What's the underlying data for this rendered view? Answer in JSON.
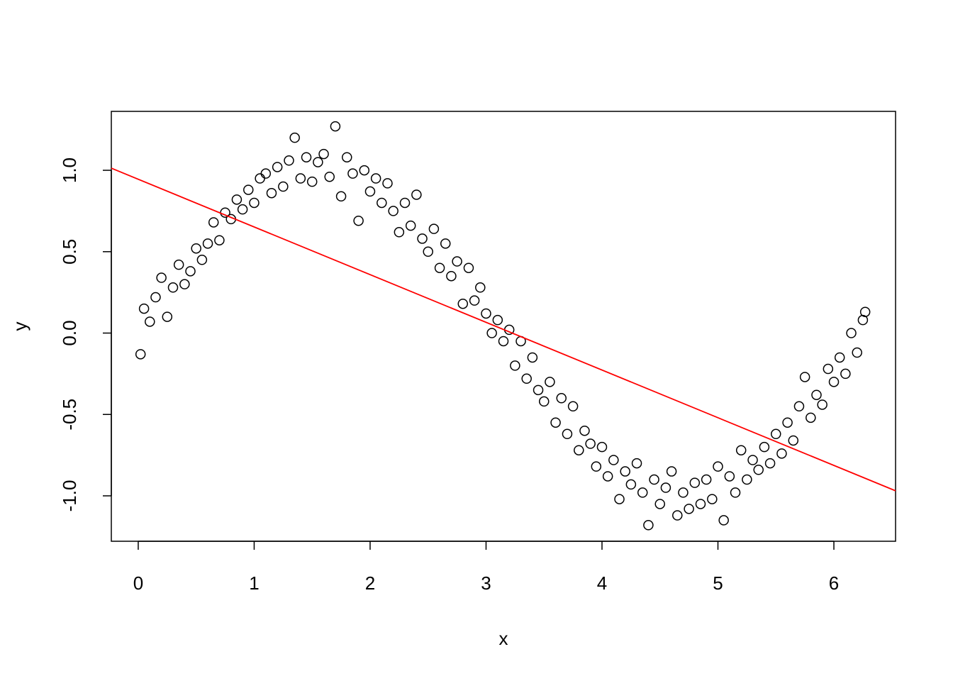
{
  "chart_data": {
    "type": "scatter",
    "xlabel": "x",
    "ylabel": "y",
    "xlim": [
      -0.232,
      6.532
    ],
    "ylim": [
      -1.279,
      1.362
    ],
    "xticks": [
      0,
      1,
      2,
      3,
      4,
      5,
      6
    ],
    "yticks": [
      {
        "value": -1,
        "label": "-1.0"
      },
      -0.5,
      {
        "value": 0,
        "label": "0.0"
      },
      0.5,
      {
        "value": 1,
        "label": "1.0"
      }
    ],
    "points": {
      "color": "#000000",
      "x": [
        0.02,
        0.05,
        0.1,
        0.15,
        0.2,
        0.25,
        0.3,
        0.35,
        0.4,
        0.45,
        0.5,
        0.55,
        0.6,
        0.65,
        0.7,
        0.75,
        0.8,
        0.85,
        0.9,
        0.95,
        1.0,
        1.05,
        1.1,
        1.15,
        1.2,
        1.25,
        1.3,
        1.35,
        1.4,
        1.45,
        1.5,
        1.55,
        1.6,
        1.65,
        1.7,
        1.75,
        1.8,
        1.85,
        1.9,
        1.95,
        2.0,
        2.05,
        2.1,
        2.15,
        2.2,
        2.25,
        2.3,
        2.35,
        2.4,
        2.45,
        2.5,
        2.55,
        2.6,
        2.65,
        2.7,
        2.75,
        2.8,
        2.85,
        2.9,
        2.95,
        3.0,
        3.05,
        3.1,
        3.15,
        3.2,
        3.25,
        3.3,
        3.35,
        3.4,
        3.45,
        3.5,
        3.55,
        3.6,
        3.65,
        3.7,
        3.75,
        3.8,
        3.85,
        3.9,
        3.95,
        4.0,
        4.05,
        4.1,
        4.15,
        4.2,
        4.25,
        4.3,
        4.35,
        4.4,
        4.45,
        4.5,
        4.55,
        4.6,
        4.65,
        4.7,
        4.75,
        4.8,
        4.85,
        4.9,
        4.95,
        5.0,
        5.05,
        5.1,
        5.15,
        5.2,
        5.25,
        5.3,
        5.35,
        5.4,
        5.45,
        5.5,
        5.55,
        5.6,
        5.65,
        5.7,
        5.75,
        5.8,
        5.85,
        5.9,
        5.95,
        6.0,
        6.05,
        6.1,
        6.15,
        6.2,
        6.25,
        6.27
      ],
      "y": [
        -0.13,
        0.15,
        0.07,
        0.22,
        0.34,
        0.1,
        0.28,
        0.42,
        0.3,
        0.38,
        0.52,
        0.45,
        0.55,
        0.68,
        0.57,
        0.74,
        0.7,
        0.82,
        0.76,
        0.88,
        0.8,
        0.95,
        0.98,
        0.86,
        1.02,
        0.9,
        1.06,
        1.2,
        0.95,
        1.08,
        0.93,
        1.05,
        1.1,
        0.96,
        1.27,
        0.84,
        1.08,
        0.98,
        0.69,
        1.0,
        0.87,
        0.95,
        0.8,
        0.92,
        0.75,
        0.62,
        0.8,
        0.66,
        0.85,
        0.58,
        0.5,
        0.64,
        0.4,
        0.55,
        0.35,
        0.44,
        0.18,
        0.4,
        0.2,
        0.28,
        0.12,
        0.0,
        0.08,
        -0.05,
        0.02,
        -0.2,
        -0.05,
        -0.28,
        -0.15,
        -0.35,
        -0.42,
        -0.3,
        -0.55,
        -0.4,
        -0.62,
        -0.45,
        -0.72,
        -0.6,
        -0.68,
        -0.82,
        -0.7,
        -0.88,
        -0.78,
        -1.02,
        -0.85,
        -0.93,
        -0.8,
        -0.98,
        -1.18,
        -0.9,
        -1.05,
        -0.95,
        -0.85,
        -1.12,
        -0.98,
        -1.08,
        -0.92,
        -1.05,
        -0.9,
        -1.02,
        -0.82,
        -1.15,
        -0.88,
        -0.98,
        -0.72,
        -0.9,
        -0.78,
        -0.84,
        -0.7,
        -0.8,
        -0.62,
        -0.74,
        -0.55,
        -0.66,
        -0.45,
        -0.27,
        -0.52,
        -0.38,
        -0.44,
        -0.22,
        -0.3,
        -0.15,
        -0.25,
        0.0,
        -0.12,
        0.08,
        0.13
      ]
    },
    "line": {
      "color": "#ff0000",
      "x": [
        -0.232,
        6.532
      ],
      "y": [
        1.013,
        -0.969
      ]
    }
  }
}
